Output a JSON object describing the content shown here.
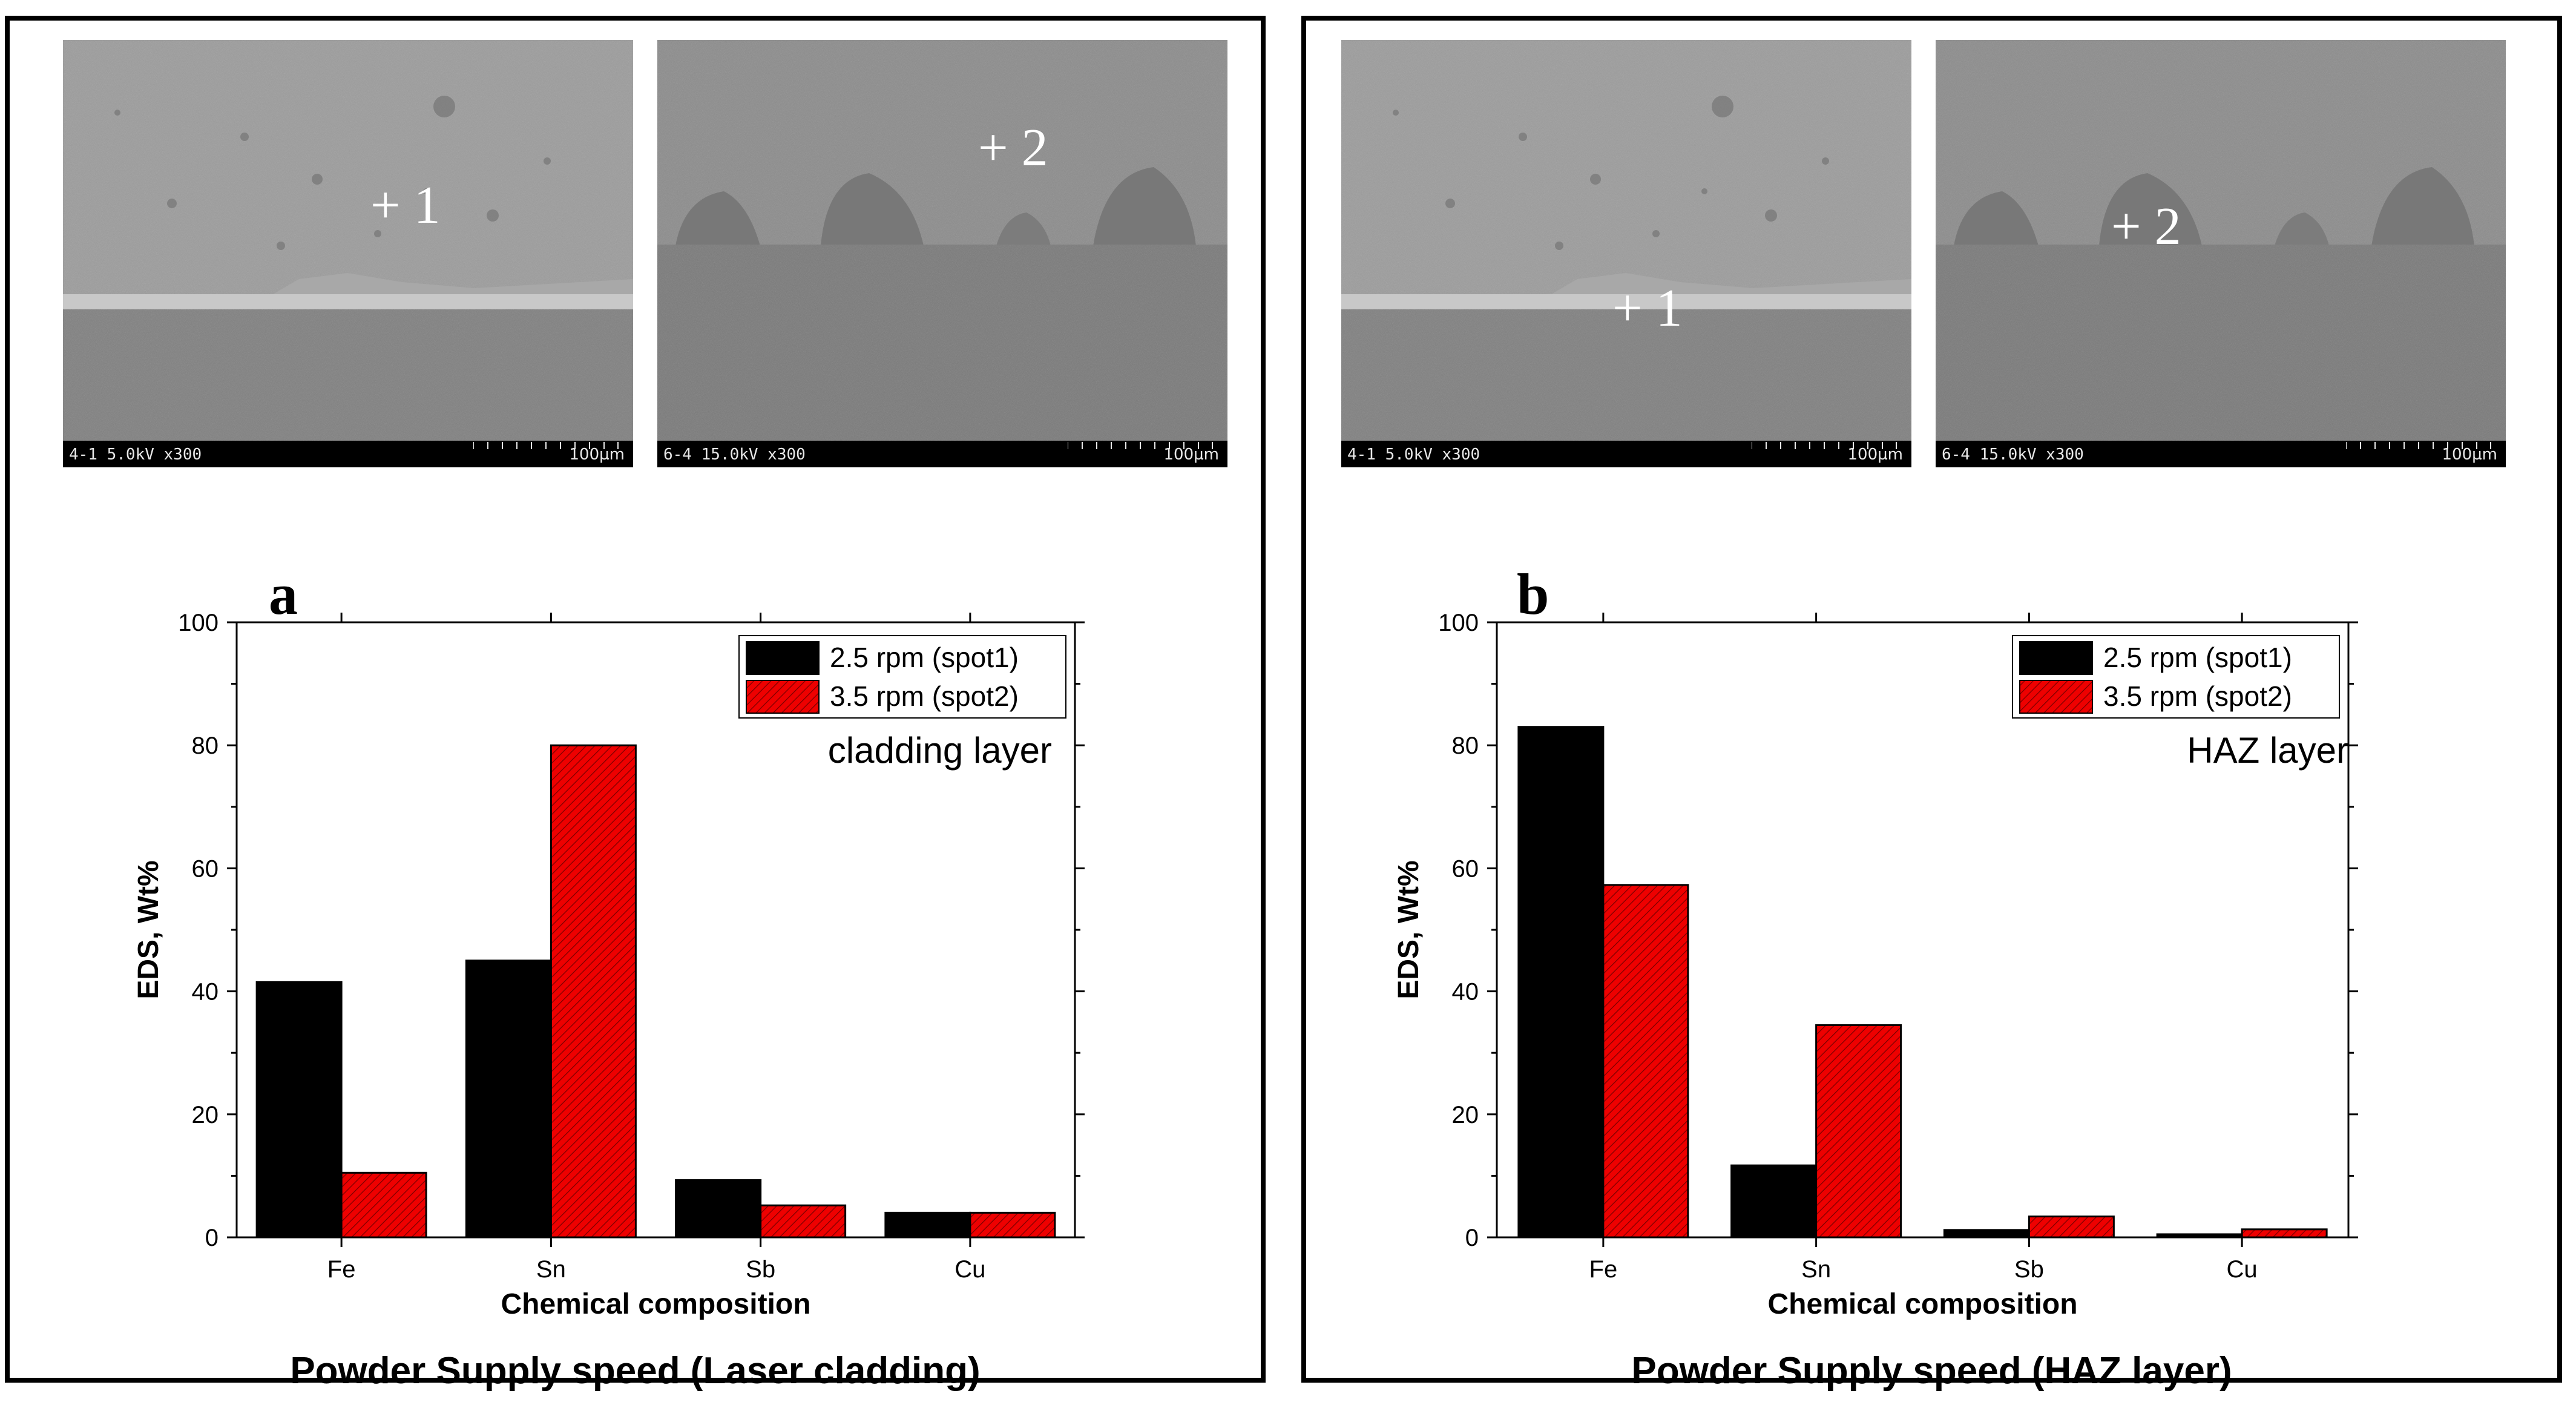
{
  "panels": [
    {
      "letter": "a",
      "sem_images": [
        {
          "caption_left": "4-1 5.0kV x300",
          "caption_right": "100µm",
          "spot_label": "+ 1"
        },
        {
          "caption_left": "6-4 15.0kV x300",
          "caption_right": "100µm",
          "spot_label": "+ 2"
        }
      ],
      "caption": "Powder Supply speed (Laser cladding)"
    },
    {
      "letter": "b",
      "sem_images": [
        {
          "caption_left": "4-1 5.0kV x300",
          "caption_right": "100µm",
          "spot_label": "+ 1"
        },
        {
          "caption_left": "6-4 15.0kV x300",
          "caption_right": "100µm",
          "spot_label": "+ 2"
        }
      ],
      "caption": "Powder Supply speed (HAZ layer)"
    }
  ],
  "chart_data": [
    {
      "type": "bar",
      "categories": [
        "Fe",
        "Sn",
        "Sb",
        "Cu"
      ],
      "series": [
        {
          "name": "2.5 rpm (spot1)",
          "values": [
            41.5,
            45.0,
            9.3,
            4.0
          ],
          "color": "#000000"
        },
        {
          "name": "3.5 rpm (spot2)",
          "values": [
            10.5,
            80.0,
            5.2,
            4.0
          ],
          "color": "#ee0000"
        }
      ],
      "annotation": "cladding layer",
      "xlabel": "Chemical composition",
      "ylabel": "EDS, Wt%",
      "ylim": [
        0,
        100
      ],
      "yticks": [
        0,
        20,
        40,
        60,
        80,
        100
      ],
      "legend": "top-right",
      "grid": false
    },
    {
      "type": "bar",
      "categories": [
        "Fe",
        "Sn",
        "Sb",
        "Cu"
      ],
      "series": [
        {
          "name": "2.5 rpm (spot1)",
          "values": [
            83.0,
            11.7,
            1.2,
            0.5
          ],
          "color": "#000000"
        },
        {
          "name": "3.5 rpm (spot2)",
          "values": [
            57.3,
            34.5,
            3.4,
            1.3
          ],
          "color": "#ee0000"
        }
      ],
      "annotation": "HAZ layer",
      "xlabel": "Chemical composition",
      "ylabel": "EDS, Wt%",
      "ylim": [
        0,
        100
      ],
      "yticks": [
        0,
        20,
        40,
        60,
        80,
        100
      ],
      "legend": "top-right",
      "grid": false
    }
  ]
}
